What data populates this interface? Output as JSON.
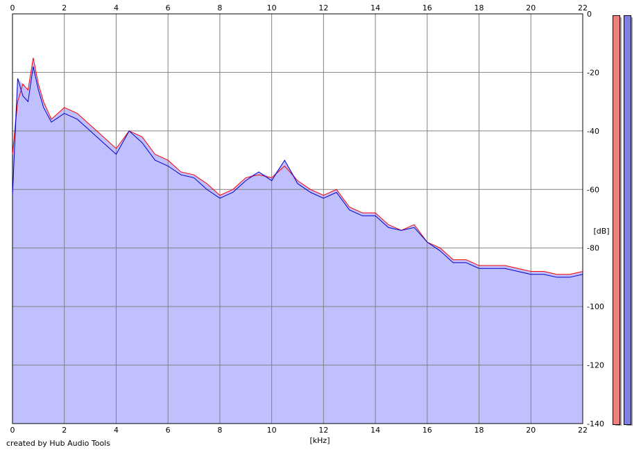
{
  "chart_data": {
    "type": "area",
    "xlabel": "[kHz]",
    "ylabel": "[dB]",
    "xlim": [
      0,
      22
    ],
    "ylim": [
      -140,
      0
    ],
    "x_ticks": [
      "0",
      "2",
      "4",
      "6",
      "8",
      "10",
      "12",
      "14",
      "16",
      "18",
      "20",
      "22"
    ],
    "y_ticks": [
      "0",
      "-20",
      "-40",
      "-60",
      "-80",
      "-100",
      "-120",
      "-140"
    ],
    "grid": true,
    "colors": {
      "background": "#c0c0ff",
      "plot_top": "#ffffff",
      "series_red": "#ff0000",
      "series_blue": "#0000cc",
      "grid": "#808080"
    },
    "series": [
      {
        "color": "#ff0000",
        "x": [
          0,
          0.2,
          0.4,
          0.6,
          0.8,
          1.0,
          1.2,
          1.5,
          2.0,
          2.5,
          3.0,
          3.5,
          4.0,
          4.5,
          5.0,
          5.5,
          6.0,
          6.5,
          7.0,
          7.5,
          8.0,
          8.5,
          9.0,
          9.5,
          10.0,
          10.5,
          11.0,
          11.5,
          12.0,
          12.5,
          13.0,
          13.5,
          14.0,
          14.5,
          15.0,
          15.5,
          16.0,
          16.5,
          17.0,
          17.5,
          18.0,
          18.5,
          19.0,
          19.5,
          20.0,
          20.5,
          21.0,
          21.5,
          22.0
        ],
        "y": [
          -48,
          -30,
          -24,
          -26,
          -15,
          -24,
          -30,
          -36,
          -32,
          -34,
          -38,
          -42,
          -46,
          -40,
          -42,
          -48,
          -50,
          -54,
          -55,
          -58,
          -62,
          -60,
          -56,
          -55,
          -56,
          -52,
          -57,
          -60,
          -62,
          -60,
          -66,
          -68,
          -68,
          -72,
          -74,
          -72,
          -78,
          -80,
          -84,
          -84,
          -86,
          -86,
          -86,
          -87,
          -88,
          -88,
          -89,
          -89,
          -88
        ]
      },
      {
        "color": "#0000cc",
        "x": [
          0,
          0.2,
          0.4,
          0.6,
          0.8,
          1.0,
          1.2,
          1.5,
          2.0,
          2.5,
          3.0,
          3.5,
          4.0,
          4.5,
          5.0,
          5.5,
          6.0,
          6.5,
          7.0,
          7.5,
          8.0,
          8.5,
          9.0,
          9.5,
          10.0,
          10.5,
          11.0,
          11.5,
          12.0,
          12.5,
          13.0,
          13.5,
          14.0,
          14.5,
          15.0,
          15.5,
          16.0,
          16.5,
          17.0,
          17.5,
          18.0,
          18.5,
          19.0,
          19.5,
          20.0,
          20.5,
          21.0,
          21.5,
          22.0
        ],
        "y": [
          -62,
          -22,
          -28,
          -30,
          -18,
          -26,
          -32,
          -37,
          -34,
          -36,
          -40,
          -44,
          -48,
          -40,
          -44,
          -50,
          -52,
          -55,
          -56,
          -60,
          -63,
          -61,
          -57,
          -54,
          -57,
          -50,
          -58,
          -61,
          -63,
          -61,
          -67,
          -69,
          -69,
          -73,
          -74,
          -73,
          -78,
          -81,
          -85,
          -85,
          -87,
          -87,
          -87,
          -88,
          -89,
          -89,
          -90,
          -90,
          -89
        ]
      }
    ]
  },
  "meters": {
    "left_color": "#f08080",
    "right_color": "#8080e0"
  },
  "footer": {
    "credit": "created by Hub Audio Tools"
  }
}
